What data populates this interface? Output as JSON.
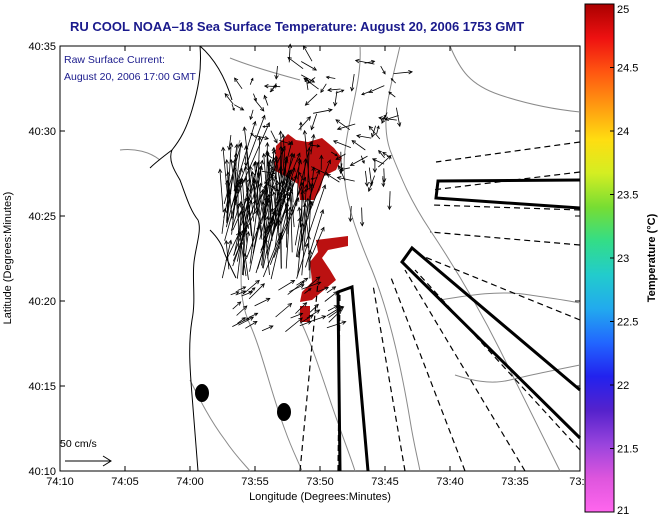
{
  "title": "RU COOL  NOAA–18  Sea Surface Temperature:  August 20, 2006 1753 GMT",
  "annotation": {
    "line1": "Raw Surface Current:",
    "line2": "August 20, 2006 17:00 GMT"
  },
  "scale_label": "50 cm/s",
  "x_axis": {
    "label": "Longitude (Degrees:Minutes)",
    "ticks": [
      "74:10",
      "74:05",
      "74:00",
      "73:55",
      "73:50",
      "73:45",
      "73:40",
      "73:35",
      "73:3"
    ]
  },
  "y_axis": {
    "label": "Latitude (Degrees:Minutes)",
    "ticks": [
      "40:35",
      "40:30",
      "40:25",
      "40:20",
      "40:15",
      "40:10"
    ]
  },
  "colorbar": {
    "label": "Temperature (°C)",
    "ticks": [
      "25",
      "24.5",
      "24",
      "23.5",
      "23",
      "22.5",
      "22",
      "21.5",
      "21"
    ],
    "colors": [
      "#aa0000",
      "#ee1111",
      "#ff5511",
      "#ff9911",
      "#ffdd11",
      "#d4ee22",
      "#77dd33",
      "#33dd88",
      "#22cccc",
      "#22aaee",
      "#2266ff",
      "#2222ee",
      "#5522cc",
      "#9944dd",
      "#dd55dd",
      "#ff66ee"
    ]
  },
  "colors": {
    "title": "#1a1a8c",
    "annotation": "#1a1a8c",
    "warm_patch": "#bb1111",
    "land_outline": "#000000",
    "bathymetry": "#8a8a8a"
  }
}
